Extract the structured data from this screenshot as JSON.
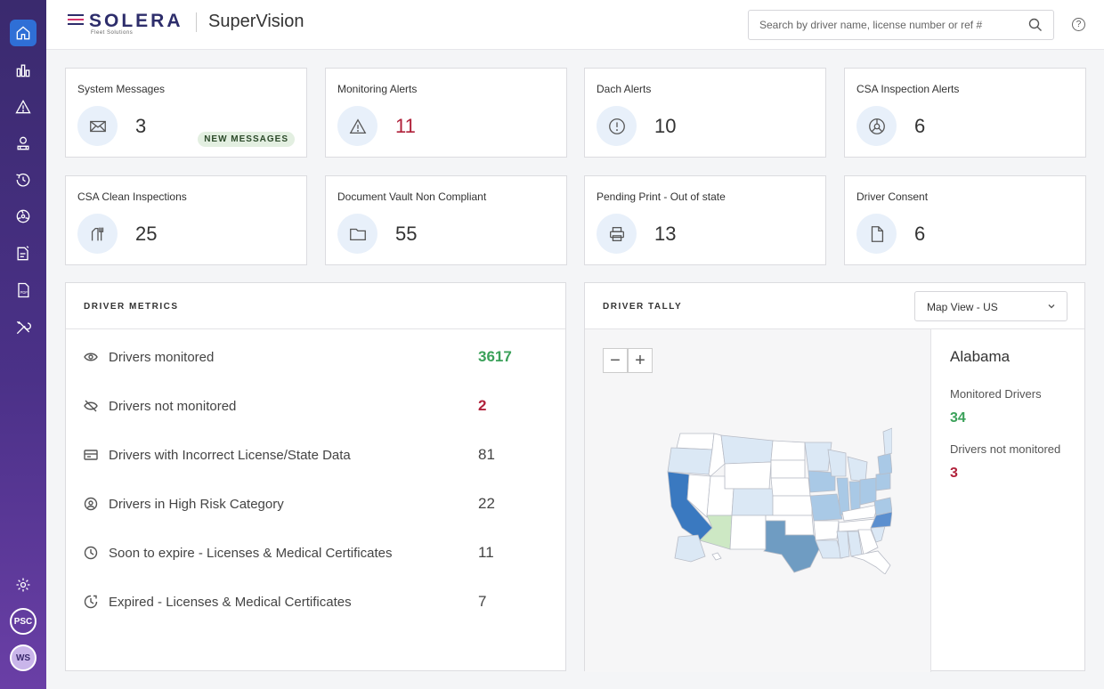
{
  "brand": {
    "logo_text": "SOLERA",
    "logo_sub": "Fleet Solutions",
    "app_name": "SuperVision"
  },
  "search": {
    "placeholder": "Search by driver name, license number or ref #"
  },
  "sidebar": {
    "items": [
      {
        "name": "home-icon",
        "active": true
      },
      {
        "name": "bar-chart-icon"
      },
      {
        "name": "warning-icon"
      },
      {
        "name": "driver-icon"
      },
      {
        "name": "history-icon"
      },
      {
        "name": "radiation-icon"
      },
      {
        "name": "document-edit-icon"
      },
      {
        "name": "pdf-icon"
      },
      {
        "name": "tools-icon"
      },
      {
        "name": "gear-icon"
      }
    ],
    "avatars": [
      "PSC",
      "WS"
    ]
  },
  "cards": [
    {
      "title": "System Messages",
      "value": "3",
      "icon": "envelope-icon",
      "badge": "NEW MESSAGES"
    },
    {
      "title": "Monitoring Alerts",
      "value": "11",
      "icon": "warning-icon",
      "highlight": "#b0213a"
    },
    {
      "title": "Dach Alerts",
      "value": "10",
      "icon": "alert-circle-icon"
    },
    {
      "title": "CSA Inspection Alerts",
      "value": "6",
      "icon": "inspection-icon"
    },
    {
      "title": "CSA Clean Inspections",
      "value": "25",
      "icon": "clean-inspection-icon"
    },
    {
      "title": "Document Vault Non Compliant",
      "value": "55",
      "icon": "folder-icon"
    },
    {
      "title": "Pending Print - Out of state",
      "value": "13",
      "icon": "printer-icon"
    },
    {
      "title": "Driver Consent",
      "value": "6",
      "icon": "document-icon"
    }
  ],
  "driver_metrics": {
    "title": "DRIVER METRICS",
    "rows": [
      {
        "label": "Drivers monitored",
        "value": "3617",
        "icon": "eye-icon",
        "color": "#3ba15a"
      },
      {
        "label": "Drivers not monitored",
        "value": "2",
        "icon": "eye-off-icon",
        "color": "#b0213a"
      },
      {
        "label": "Drivers with Incorrect License/State Data",
        "value": "81",
        "icon": "id-card-icon"
      },
      {
        "label": "Drivers in High Risk Category",
        "value": "22",
        "icon": "risk-icon"
      },
      {
        "label": "Soon to expire - Licenses & Medical Certificates",
        "value": "11",
        "icon": "clock-icon"
      },
      {
        "label": "Expired - Licenses & Medical Certificates",
        "value": "7",
        "icon": "expired-clock-icon"
      }
    ]
  },
  "driver_tally": {
    "title": "DRIVER TALLY",
    "view_select": "Map View - US",
    "zoom_out": "−",
    "zoom_in": "+",
    "selected_state": "Alabama",
    "monitored_label": "Monitored Drivers",
    "monitored_value": "34",
    "not_monitored_label": "Drivers not monitored",
    "not_monitored_value": "3"
  }
}
